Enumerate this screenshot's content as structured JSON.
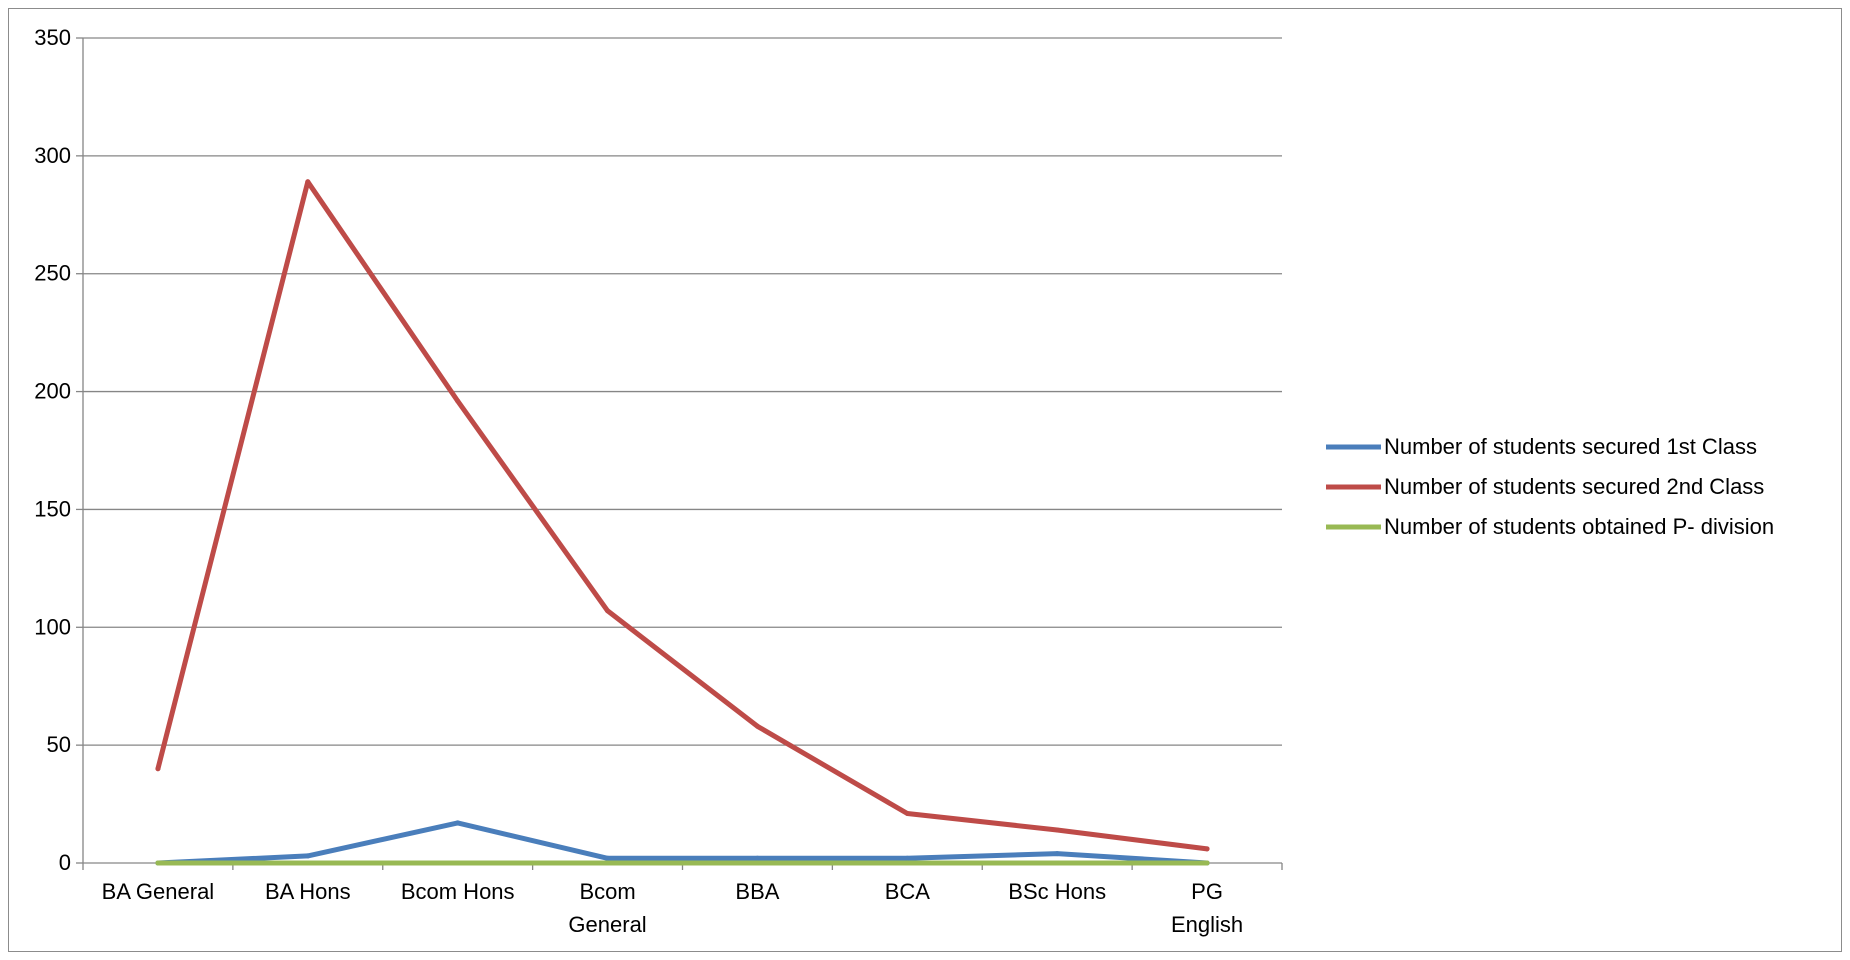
{
  "chart_data": {
    "type": "line",
    "title": "",
    "xlabel": "",
    "ylabel": "",
    "categories": [
      [
        "BA General"
      ],
      [
        "BA Hons"
      ],
      [
        "Bcom Hons"
      ],
      [
        "Bcom",
        "General"
      ],
      [
        "BBA"
      ],
      [
        "BCA"
      ],
      [
        "BSc Hons"
      ],
      [
        "PG",
        "English"
      ]
    ],
    "ylim": [
      0,
      350
    ],
    "yticks": [
      "0",
      "50",
      "100",
      "150",
      "200",
      "250",
      "300",
      "350"
    ],
    "grid": "horizontal",
    "legend_position": "right",
    "series": [
      {
        "name": "Number of students secured 1st Class",
        "color": "#4a7ebb",
        "values": [
          0,
          3,
          17,
          2,
          2,
          2,
          4,
          0
        ]
      },
      {
        "name": "Number of students secured 2nd Class",
        "color": "#be4b48",
        "values": [
          40,
          289,
          196,
          107,
          58,
          21,
          14,
          6
        ]
      },
      {
        "name": "Number of students obtained P- division",
        "color": "#98b954",
        "values": [
          0,
          0,
          0,
          0,
          0,
          0,
          0,
          0
        ]
      }
    ]
  }
}
